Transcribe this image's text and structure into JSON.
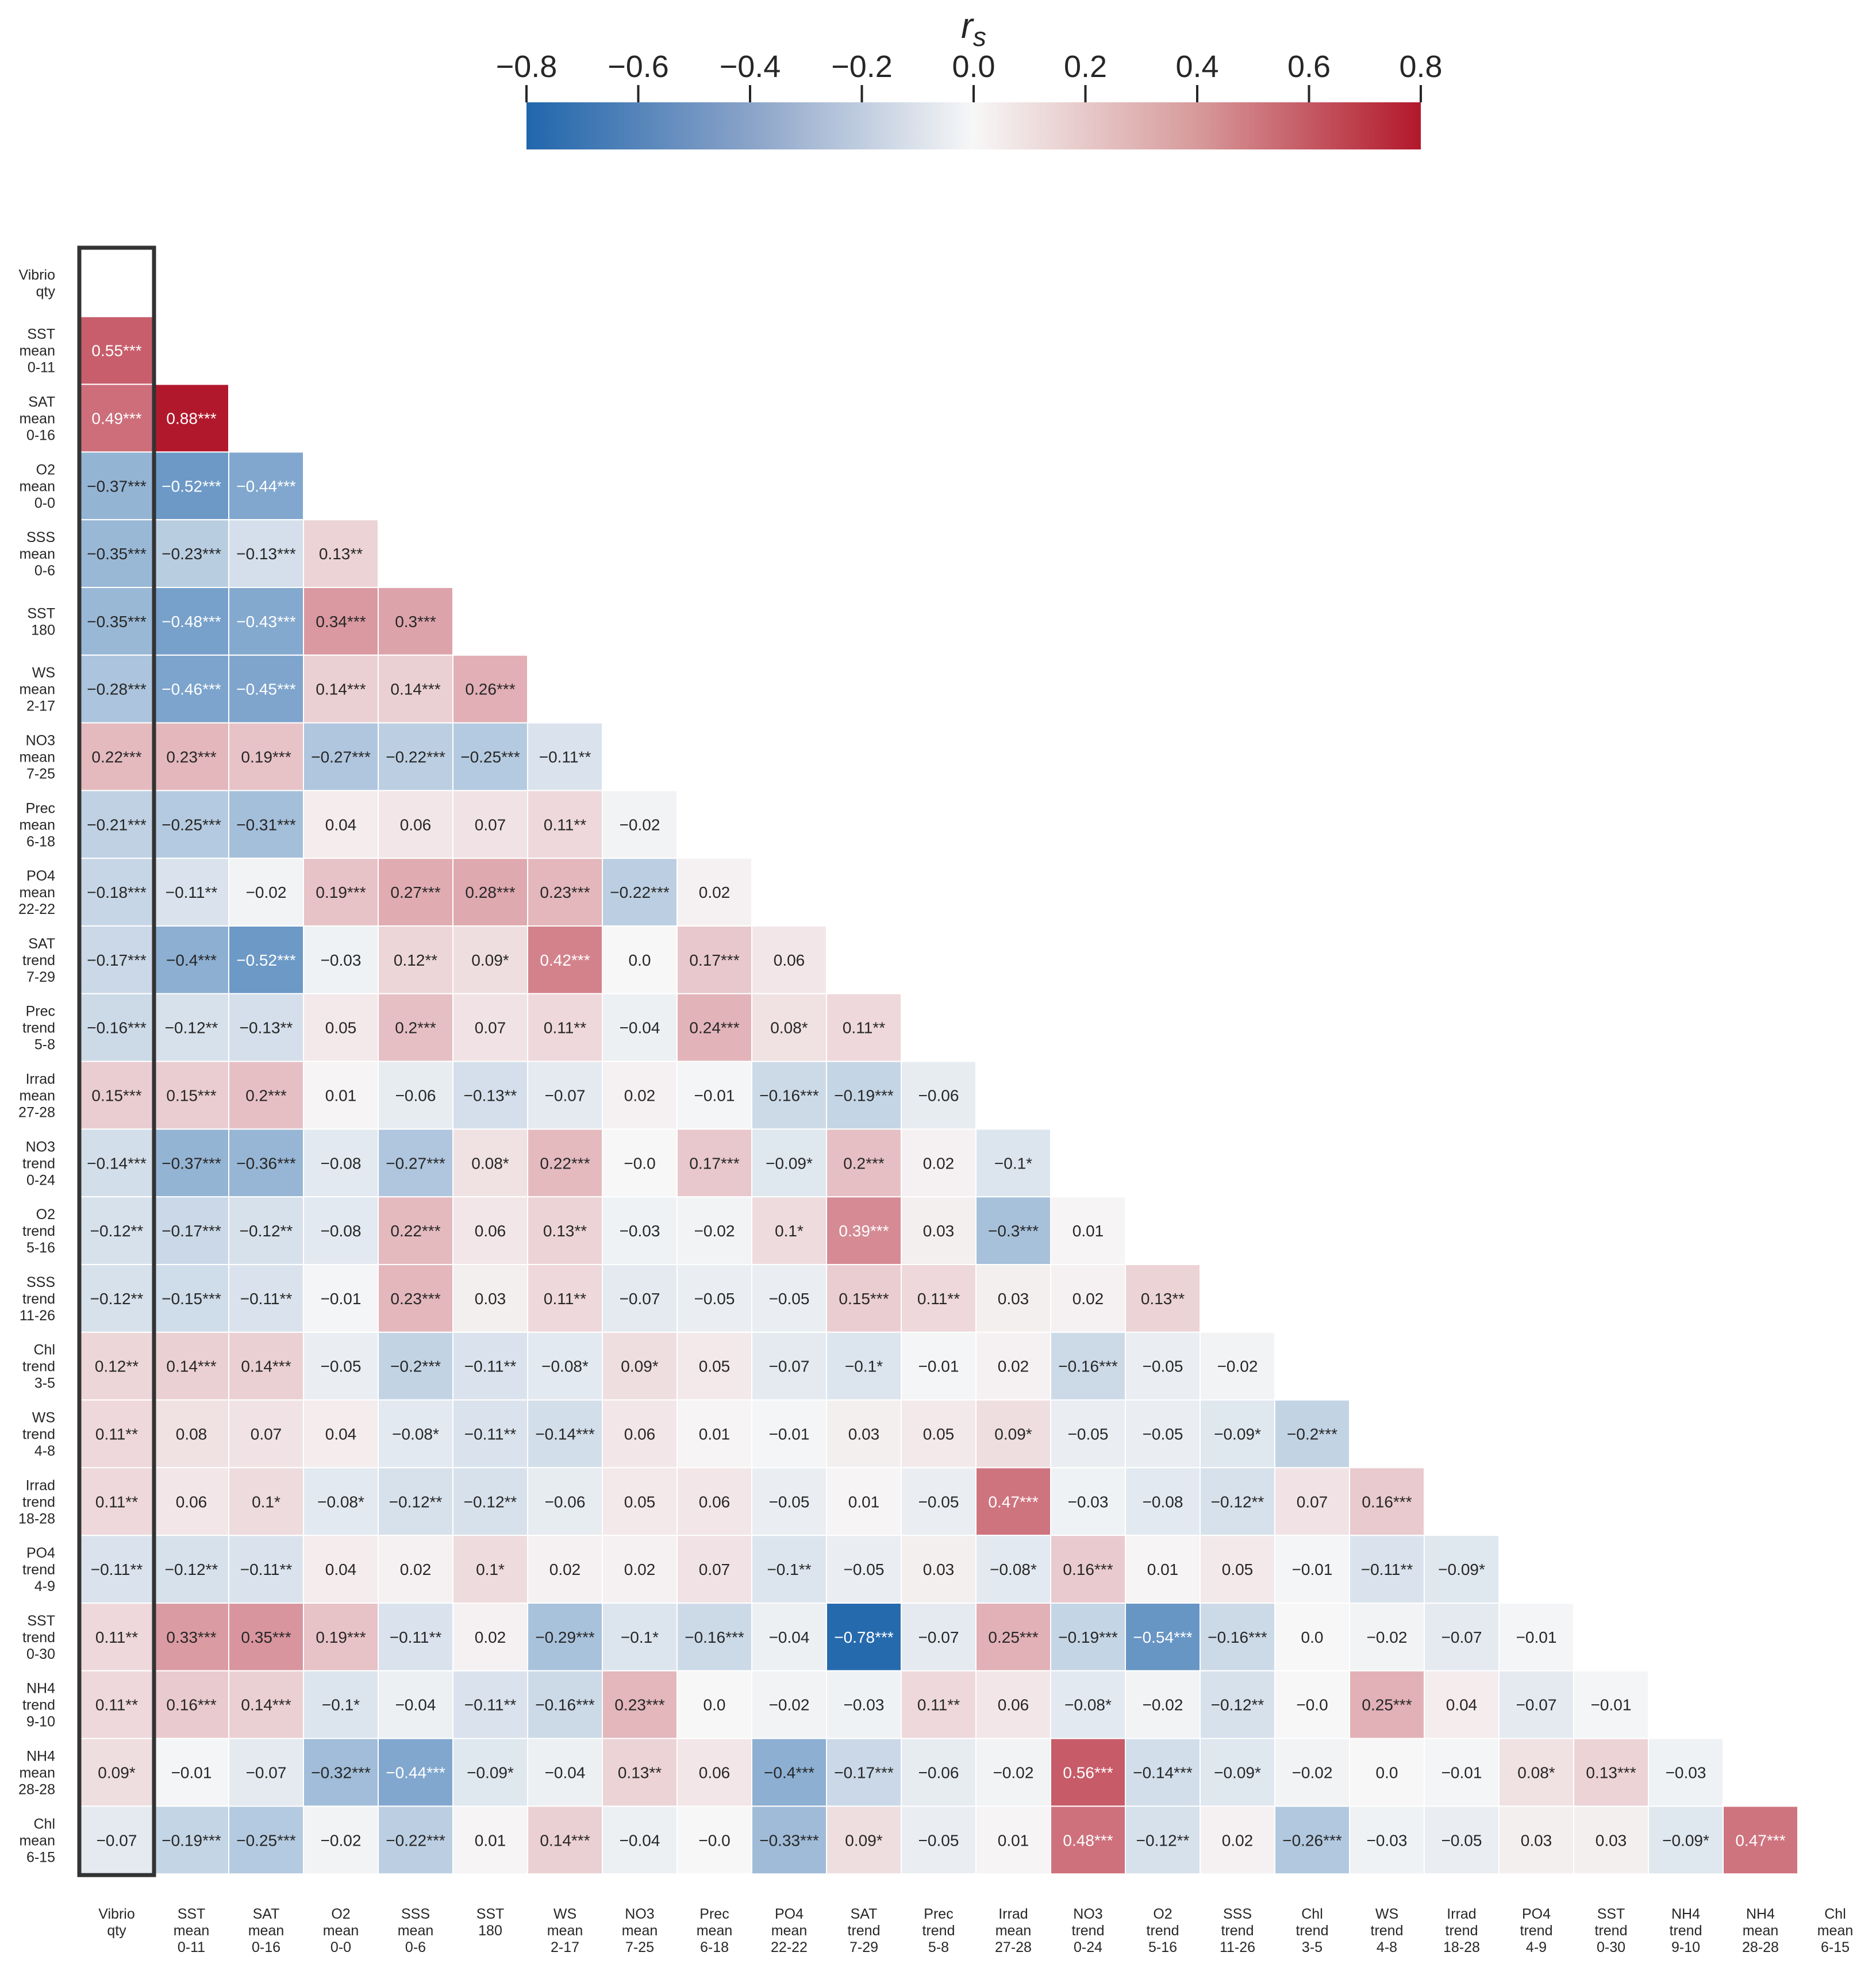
{
  "chart_data": {
    "type": "heatmap",
    "title": "",
    "variables": [
      "Vibrio qty",
      "SST mean 0-11",
      "SAT mean 0-16",
      "O2 mean 0-0",
      "SSS mean 0-6",
      "SST 180",
      "WS mean 2-17",
      "NO3 mean 7-25",
      "Prec mean 6-18",
      "PO4 mean 22-22",
      "SAT trend 7-29",
      "Prec trend 5-8",
      "Irrad mean 27-28",
      "NO3 trend 0-24",
      "O2 trend 5-16",
      "SSS trend 11-26",
      "Chl trend 3-5",
      "WS trend 4-8",
      "Irrad trend 18-28",
      "PO4 trend 4-9",
      "SST trend 0-30",
      "NH4 trend 9-10",
      "NH4 mean 28-28",
      "Chl mean 6-15"
    ],
    "highlighted_column": "Vibrio qty",
    "colorbar": {
      "label": "r",
      "label_subscript": "s",
      "vmin": -0.8,
      "vmax": 0.8,
      "ticks": [
        -0.8,
        -0.6,
        -0.4,
        -0.2,
        0.0,
        0.2,
        0.4,
        0.6,
        0.8
      ],
      "tick_labels": [
        "−0.8",
        "−0.6",
        "−0.4",
        "−0.2",
        "0.0",
        "0.2",
        "0.4",
        "0.6",
        "0.8"
      ],
      "colormap": {
        "negative": "#2166ac",
        "center": "#f7f7f7",
        "positive": "#b2182b"
      }
    },
    "rows": [
      [],
      [
        {
          "v": 0.55,
          "t": "0.55***"
        }
      ],
      [
        {
          "v": 0.49,
          "t": "0.49***"
        },
        {
          "v": 0.88,
          "t": "0.88***"
        }
      ],
      [
        {
          "v": -0.37,
          "t": "−0.37***"
        },
        {
          "v": -0.52,
          "t": "−0.52***"
        },
        {
          "v": -0.44,
          "t": "−0.44***"
        }
      ],
      [
        {
          "v": -0.35,
          "t": "−0.35***"
        },
        {
          "v": -0.23,
          "t": "−0.23***"
        },
        {
          "v": -0.13,
          "t": "−0.13***"
        },
        {
          "v": 0.13,
          "t": "0.13**"
        }
      ],
      [
        {
          "v": -0.35,
          "t": "−0.35***"
        },
        {
          "v": -0.48,
          "t": "−0.48***"
        },
        {
          "v": -0.43,
          "t": "−0.43***"
        },
        {
          "v": 0.34,
          "t": "0.34***"
        },
        {
          "v": 0.3,
          "t": "0.3***"
        }
      ],
      [
        {
          "v": -0.28,
          "t": "−0.28***"
        },
        {
          "v": -0.46,
          "t": "−0.46***"
        },
        {
          "v": -0.45,
          "t": "−0.45***"
        },
        {
          "v": 0.14,
          "t": "0.14***"
        },
        {
          "v": 0.14,
          "t": "0.14***"
        },
        {
          "v": 0.26,
          "t": "0.26***"
        }
      ],
      [
        {
          "v": 0.22,
          "t": "0.22***"
        },
        {
          "v": 0.23,
          "t": "0.23***"
        },
        {
          "v": 0.19,
          "t": "0.19***"
        },
        {
          "v": -0.27,
          "t": "−0.27***"
        },
        {
          "v": -0.22,
          "t": "−0.22***"
        },
        {
          "v": -0.25,
          "t": "−0.25***"
        },
        {
          "v": -0.11,
          "t": "−0.11**"
        }
      ],
      [
        {
          "v": -0.21,
          "t": "−0.21***"
        },
        {
          "v": -0.25,
          "t": "−0.25***"
        },
        {
          "v": -0.31,
          "t": "−0.31***"
        },
        {
          "v": 0.04,
          "t": "0.04"
        },
        {
          "v": 0.06,
          "t": "0.06"
        },
        {
          "v": 0.07,
          "t": "0.07"
        },
        {
          "v": 0.11,
          "t": "0.11**"
        },
        {
          "v": -0.02,
          "t": "−0.02"
        }
      ],
      [
        {
          "v": -0.18,
          "t": "−0.18***"
        },
        {
          "v": -0.11,
          "t": "−0.11**"
        },
        {
          "v": -0.02,
          "t": "−0.02"
        },
        {
          "v": 0.19,
          "t": "0.19***"
        },
        {
          "v": 0.27,
          "t": "0.27***"
        },
        {
          "v": 0.28,
          "t": "0.28***"
        },
        {
          "v": 0.23,
          "t": "0.23***"
        },
        {
          "v": -0.22,
          "t": "−0.22***"
        },
        {
          "v": 0.02,
          "t": "0.02"
        }
      ],
      [
        {
          "v": -0.17,
          "t": "−0.17***"
        },
        {
          "v": -0.4,
          "t": "−0.4***"
        },
        {
          "v": -0.52,
          "t": "−0.52***"
        },
        {
          "v": -0.03,
          "t": "−0.03"
        },
        {
          "v": 0.12,
          "t": "0.12**"
        },
        {
          "v": 0.09,
          "t": "0.09*"
        },
        {
          "v": 0.42,
          "t": "0.42***"
        },
        {
          "v": 0.0,
          "t": "0.0"
        },
        {
          "v": 0.17,
          "t": "0.17***"
        },
        {
          "v": 0.06,
          "t": "0.06"
        }
      ],
      [
        {
          "v": -0.16,
          "t": "−0.16***"
        },
        {
          "v": -0.12,
          "t": "−0.12**"
        },
        {
          "v": -0.13,
          "t": "−0.13**"
        },
        {
          "v": 0.05,
          "t": "0.05"
        },
        {
          "v": 0.2,
          "t": "0.2***"
        },
        {
          "v": 0.07,
          "t": "0.07"
        },
        {
          "v": 0.11,
          "t": "0.11**"
        },
        {
          "v": -0.04,
          "t": "−0.04"
        },
        {
          "v": 0.24,
          "t": "0.24***"
        },
        {
          "v": 0.08,
          "t": "0.08*"
        },
        {
          "v": 0.11,
          "t": "0.11**"
        }
      ],
      [
        {
          "v": 0.15,
          "t": "0.15***"
        },
        {
          "v": 0.15,
          "t": "0.15***"
        },
        {
          "v": 0.2,
          "t": "0.2***"
        },
        {
          "v": 0.01,
          "t": "0.01"
        },
        {
          "v": -0.06,
          "t": "−0.06"
        },
        {
          "v": -0.13,
          "t": "−0.13**"
        },
        {
          "v": -0.07,
          "t": "−0.07"
        },
        {
          "v": 0.02,
          "t": "0.02"
        },
        {
          "v": -0.01,
          "t": "−0.01"
        },
        {
          "v": -0.16,
          "t": "−0.16***"
        },
        {
          "v": -0.19,
          "t": "−0.19***"
        },
        {
          "v": -0.06,
          "t": "−0.06"
        }
      ],
      [
        {
          "v": -0.14,
          "t": "−0.14***"
        },
        {
          "v": -0.37,
          "t": "−0.37***"
        },
        {
          "v": -0.36,
          "t": "−0.36***"
        },
        {
          "v": -0.08,
          "t": "−0.08"
        },
        {
          "v": -0.27,
          "t": "−0.27***"
        },
        {
          "v": 0.08,
          "t": "0.08*"
        },
        {
          "v": 0.22,
          "t": "0.22***"
        },
        {
          "v": -0.0,
          "t": "−0.0"
        },
        {
          "v": 0.17,
          "t": "0.17***"
        },
        {
          "v": -0.09,
          "t": "−0.09*"
        },
        {
          "v": 0.2,
          "t": "0.2***"
        },
        {
          "v": 0.02,
          "t": "0.02"
        },
        {
          "v": -0.1,
          "t": "−0.1*"
        }
      ],
      [
        {
          "v": -0.12,
          "t": "−0.12**"
        },
        {
          "v": -0.17,
          "t": "−0.17***"
        },
        {
          "v": -0.12,
          "t": "−0.12**"
        },
        {
          "v": -0.08,
          "t": "−0.08"
        },
        {
          "v": 0.22,
          "t": "0.22***"
        },
        {
          "v": 0.06,
          "t": "0.06"
        },
        {
          "v": 0.13,
          "t": "0.13**"
        },
        {
          "v": -0.03,
          "t": "−0.03"
        },
        {
          "v": -0.02,
          "t": "−0.02"
        },
        {
          "v": 0.1,
          "t": "0.1*"
        },
        {
          "v": 0.39,
          "t": "0.39***"
        },
        {
          "v": 0.03,
          "t": "0.03"
        },
        {
          "v": -0.3,
          "t": "−0.3***"
        },
        {
          "v": 0.01,
          "t": "0.01"
        }
      ],
      [
        {
          "v": -0.12,
          "t": "−0.12**"
        },
        {
          "v": -0.15,
          "t": "−0.15***"
        },
        {
          "v": -0.11,
          "t": "−0.11**"
        },
        {
          "v": -0.01,
          "t": "−0.01"
        },
        {
          "v": 0.23,
          "t": "0.23***"
        },
        {
          "v": 0.03,
          "t": "0.03"
        },
        {
          "v": 0.11,
          "t": "0.11**"
        },
        {
          "v": -0.07,
          "t": "−0.07"
        },
        {
          "v": -0.05,
          "t": "−0.05"
        },
        {
          "v": -0.05,
          "t": "−0.05"
        },
        {
          "v": 0.15,
          "t": "0.15***"
        },
        {
          "v": 0.11,
          "t": "0.11**"
        },
        {
          "v": 0.03,
          "t": "0.03"
        },
        {
          "v": 0.02,
          "t": "0.02"
        },
        {
          "v": 0.13,
          "t": "0.13**"
        }
      ],
      [
        {
          "v": 0.12,
          "t": "0.12**"
        },
        {
          "v": 0.14,
          "t": "0.14***"
        },
        {
          "v": 0.14,
          "t": "0.14***"
        },
        {
          "v": -0.05,
          "t": "−0.05"
        },
        {
          "v": -0.2,
          "t": "−0.2***"
        },
        {
          "v": -0.11,
          "t": "−0.11**"
        },
        {
          "v": -0.08,
          "t": "−0.08*"
        },
        {
          "v": 0.09,
          "t": "0.09*"
        },
        {
          "v": 0.05,
          "t": "0.05"
        },
        {
          "v": -0.07,
          "t": "−0.07"
        },
        {
          "v": -0.1,
          "t": "−0.1*"
        },
        {
          "v": -0.01,
          "t": "−0.01"
        },
        {
          "v": 0.02,
          "t": "0.02"
        },
        {
          "v": -0.16,
          "t": "−0.16***"
        },
        {
          "v": -0.05,
          "t": "−0.05"
        },
        {
          "v": -0.02,
          "t": "−0.02"
        }
      ],
      [
        {
          "v": 0.11,
          "t": "0.11**"
        },
        {
          "v": 0.08,
          "t": "0.08"
        },
        {
          "v": 0.07,
          "t": "0.07"
        },
        {
          "v": 0.04,
          "t": "0.04"
        },
        {
          "v": -0.08,
          "t": "−0.08*"
        },
        {
          "v": -0.11,
          "t": "−0.11**"
        },
        {
          "v": -0.14,
          "t": "−0.14***"
        },
        {
          "v": 0.06,
          "t": "0.06"
        },
        {
          "v": 0.01,
          "t": "0.01"
        },
        {
          "v": -0.01,
          "t": "−0.01"
        },
        {
          "v": 0.03,
          "t": "0.03"
        },
        {
          "v": 0.05,
          "t": "0.05"
        },
        {
          "v": 0.09,
          "t": "0.09*"
        },
        {
          "v": -0.05,
          "t": "−0.05"
        },
        {
          "v": -0.05,
          "t": "−0.05"
        },
        {
          "v": -0.09,
          "t": "−0.09*"
        },
        {
          "v": -0.2,
          "t": "−0.2***"
        }
      ],
      [
        {
          "v": 0.11,
          "t": "0.11**"
        },
        {
          "v": 0.06,
          "t": "0.06"
        },
        {
          "v": 0.1,
          "t": "0.1*"
        },
        {
          "v": -0.08,
          "t": "−0.08*"
        },
        {
          "v": -0.12,
          "t": "−0.12**"
        },
        {
          "v": -0.12,
          "t": "−0.12**"
        },
        {
          "v": -0.06,
          "t": "−0.06"
        },
        {
          "v": 0.05,
          "t": "0.05"
        },
        {
          "v": 0.06,
          "t": "0.06"
        },
        {
          "v": -0.05,
          "t": "−0.05"
        },
        {
          "v": 0.01,
          "t": "0.01"
        },
        {
          "v": -0.05,
          "t": "−0.05"
        },
        {
          "v": 0.47,
          "t": "0.47***"
        },
        {
          "v": -0.03,
          "t": "−0.03"
        },
        {
          "v": -0.08,
          "t": "−0.08"
        },
        {
          "v": -0.12,
          "t": "−0.12**"
        },
        {
          "v": 0.07,
          "t": "0.07"
        },
        {
          "v": 0.16,
          "t": "0.16***"
        }
      ],
      [
        {
          "v": -0.11,
          "t": "−0.11**"
        },
        {
          "v": -0.12,
          "t": "−0.12**"
        },
        {
          "v": -0.11,
          "t": "−0.11**"
        },
        {
          "v": 0.04,
          "t": "0.04"
        },
        {
          "v": 0.02,
          "t": "0.02"
        },
        {
          "v": 0.1,
          "t": "0.1*"
        },
        {
          "v": 0.02,
          "t": "0.02"
        },
        {
          "v": 0.02,
          "t": "0.02"
        },
        {
          "v": 0.07,
          "t": "0.07"
        },
        {
          "v": -0.1,
          "t": "−0.1**"
        },
        {
          "v": -0.05,
          "t": "−0.05"
        },
        {
          "v": 0.03,
          "t": "0.03"
        },
        {
          "v": -0.08,
          "t": "−0.08*"
        },
        {
          "v": 0.16,
          "t": "0.16***"
        },
        {
          "v": 0.01,
          "t": "0.01"
        },
        {
          "v": 0.05,
          "t": "0.05"
        },
        {
          "v": -0.01,
          "t": "−0.01"
        },
        {
          "v": -0.11,
          "t": "−0.11**"
        },
        {
          "v": -0.09,
          "t": "−0.09*"
        }
      ],
      [
        {
          "v": 0.11,
          "t": "0.11**"
        },
        {
          "v": 0.33,
          "t": "0.33***"
        },
        {
          "v": 0.35,
          "t": "0.35***"
        },
        {
          "v": 0.19,
          "t": "0.19***"
        },
        {
          "v": -0.11,
          "t": "−0.11**"
        },
        {
          "v": 0.02,
          "t": "0.02"
        },
        {
          "v": -0.29,
          "t": "−0.29***"
        },
        {
          "v": -0.1,
          "t": "−0.1*"
        },
        {
          "v": -0.16,
          "t": "−0.16***"
        },
        {
          "v": -0.04,
          "t": "−0.04"
        },
        {
          "v": -0.78,
          "t": "−0.78***"
        },
        {
          "v": -0.07,
          "t": "−0.07"
        },
        {
          "v": 0.25,
          "t": "0.25***"
        },
        {
          "v": -0.19,
          "t": "−0.19***"
        },
        {
          "v": -0.54,
          "t": "−0.54***"
        },
        {
          "v": -0.16,
          "t": "−0.16***"
        },
        {
          "v": 0.0,
          "t": "0.0"
        },
        {
          "v": -0.02,
          "t": "−0.02"
        },
        {
          "v": -0.07,
          "t": "−0.07"
        },
        {
          "v": -0.01,
          "t": "−0.01"
        }
      ],
      [
        {
          "v": 0.11,
          "t": "0.11**"
        },
        {
          "v": 0.16,
          "t": "0.16***"
        },
        {
          "v": 0.14,
          "t": "0.14***"
        },
        {
          "v": -0.1,
          "t": "−0.1*"
        },
        {
          "v": -0.04,
          "t": "−0.04"
        },
        {
          "v": -0.11,
          "t": "−0.11**"
        },
        {
          "v": -0.16,
          "t": "−0.16***"
        },
        {
          "v": 0.23,
          "t": "0.23***"
        },
        {
          "v": 0.0,
          "t": "0.0"
        },
        {
          "v": -0.02,
          "t": "−0.02"
        },
        {
          "v": -0.03,
          "t": "−0.03"
        },
        {
          "v": 0.11,
          "t": "0.11**"
        },
        {
          "v": 0.06,
          "t": "0.06"
        },
        {
          "v": -0.08,
          "t": "−0.08*"
        },
        {
          "v": -0.02,
          "t": "−0.02"
        },
        {
          "v": -0.12,
          "t": "−0.12**"
        },
        {
          "v": -0.0,
          "t": "−0.0"
        },
        {
          "v": 0.25,
          "t": "0.25***"
        },
        {
          "v": 0.04,
          "t": "0.04"
        },
        {
          "v": -0.07,
          "t": "−0.07"
        },
        {
          "v": -0.01,
          "t": "−0.01"
        }
      ],
      [
        {
          "v": 0.09,
          "t": "0.09*"
        },
        {
          "v": -0.01,
          "t": "−0.01"
        },
        {
          "v": -0.07,
          "t": "−0.07"
        },
        {
          "v": -0.32,
          "t": "−0.32***"
        },
        {
          "v": -0.44,
          "t": "−0.44***"
        },
        {
          "v": -0.09,
          "t": "−0.09*"
        },
        {
          "v": -0.04,
          "t": "−0.04"
        },
        {
          "v": 0.13,
          "t": "0.13**"
        },
        {
          "v": 0.06,
          "t": "0.06"
        },
        {
          "v": -0.4,
          "t": "−0.4***"
        },
        {
          "v": -0.17,
          "t": "−0.17***"
        },
        {
          "v": -0.06,
          "t": "−0.06"
        },
        {
          "v": -0.02,
          "t": "−0.02"
        },
        {
          "v": 0.56,
          "t": "0.56***"
        },
        {
          "v": -0.14,
          "t": "−0.14***"
        },
        {
          "v": -0.09,
          "t": "−0.09*"
        },
        {
          "v": -0.02,
          "t": "−0.02"
        },
        {
          "v": 0.0,
          "t": "0.0"
        },
        {
          "v": -0.01,
          "t": "−0.01"
        },
        {
          "v": 0.08,
          "t": "0.08*"
        },
        {
          "v": 0.13,
          "t": "0.13***"
        },
        {
          "v": -0.03,
          "t": "−0.03"
        }
      ],
      [
        {
          "v": -0.07,
          "t": "−0.07"
        },
        {
          "v": -0.19,
          "t": "−0.19***"
        },
        {
          "v": -0.25,
          "t": "−0.25***"
        },
        {
          "v": -0.02,
          "t": "−0.02"
        },
        {
          "v": -0.22,
          "t": "−0.22***"
        },
        {
          "v": 0.01,
          "t": "0.01"
        },
        {
          "v": 0.14,
          "t": "0.14***"
        },
        {
          "v": -0.04,
          "t": "−0.04"
        },
        {
          "v": -0.0,
          "t": "−0.0"
        },
        {
          "v": -0.33,
          "t": "−0.33***"
        },
        {
          "v": 0.09,
          "t": "0.09*"
        },
        {
          "v": -0.05,
          "t": "−0.05"
        },
        {
          "v": 0.01,
          "t": "0.01"
        },
        {
          "v": 0.48,
          "t": "0.48***"
        },
        {
          "v": -0.12,
          "t": "−0.12**"
        },
        {
          "v": 0.02,
          "t": "0.02"
        },
        {
          "v": -0.26,
          "t": "−0.26***"
        },
        {
          "v": -0.03,
          "t": "−0.03"
        },
        {
          "v": -0.05,
          "t": "−0.05"
        },
        {
          "v": 0.03,
          "t": "0.03"
        },
        {
          "v": 0.03,
          "t": "0.03"
        },
        {
          "v": -0.09,
          "t": "−0.09*"
        },
        {
          "v": 0.47,
          "t": "0.47***"
        }
      ]
    ]
  }
}
